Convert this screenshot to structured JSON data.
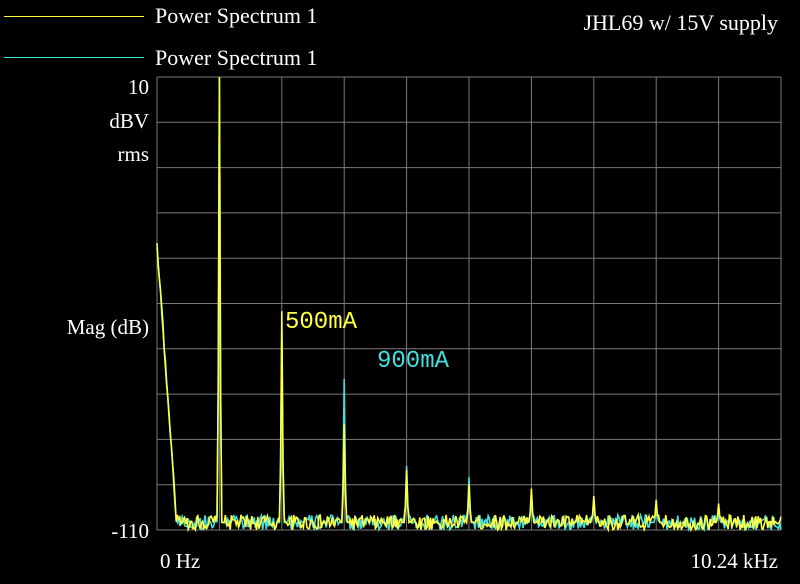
{
  "header": {
    "note": "JHL69 w/ 15V supply"
  },
  "legend": [
    {
      "label": "Power Spectrum 1",
      "color": "#ffff44"
    },
    {
      "label": "Power Spectrum 1",
      "color": "#44e0e0"
    }
  ],
  "axes": {
    "y_top_tick": "10",
    "y_unit_line1": "dBV",
    "y_unit_line2": "rms",
    "y_label": "Mag (dB)",
    "y_bottom_tick": "-110",
    "x_left_tick": "0  Hz",
    "x_right_tick": "10.24 kHz"
  },
  "annotations": [
    {
      "text": "500mA",
      "color": "#ffff44"
    },
    {
      "text": "900mA",
      "color": "#44e0e0"
    }
  ],
  "chart_data": {
    "type": "line",
    "xlabel": "",
    "ylabel": "Mag (dB)",
    "xlim": [
      0,
      10240
    ],
    "ylim": [
      -110,
      10
    ],
    "grid": true,
    "legend_placement": "top-left",
    "series": [
      {
        "name": "Power Spectrum 1",
        "color": "#ffff44",
        "peaks": [
          {
            "x": 0,
            "y": -34
          },
          {
            "x": 1024,
            "y": 10
          },
          {
            "x": 2048,
            "y": -52
          },
          {
            "x": 3072,
            "y": -82
          },
          {
            "x": 4096,
            "y": -94
          },
          {
            "x": 5120,
            "y": -98
          },
          {
            "x": 6144,
            "y": -99
          },
          {
            "x": 7168,
            "y": -101
          },
          {
            "x": 8192,
            "y": -102
          },
          {
            "x": 9216,
            "y": -103
          }
        ],
        "noise_floor": -108
      },
      {
        "name": "Power Spectrum 1",
        "color": "#44e0e0",
        "peaks": [
          {
            "x": 0,
            "y": -34
          },
          {
            "x": 1024,
            "y": 10
          },
          {
            "x": 2048,
            "y": -58
          },
          {
            "x": 3072,
            "y": -70
          },
          {
            "x": 4096,
            "y": -93
          },
          {
            "x": 5120,
            "y": -96
          },
          {
            "x": 6144,
            "y": -101
          },
          {
            "x": 7168,
            "y": -102
          },
          {
            "x": 8192,
            "y": -104
          },
          {
            "x": 9216,
            "y": -105
          }
        ],
        "noise_floor": -108
      }
    ]
  }
}
